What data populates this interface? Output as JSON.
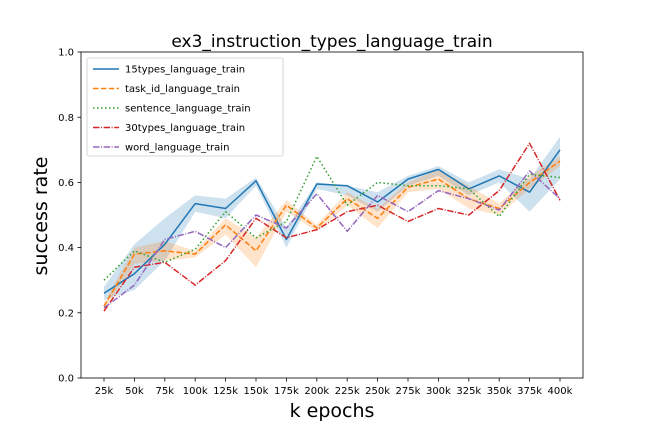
{
  "chart_data": {
    "type": "line",
    "title": "ex3_instruction_types_language_train",
    "xlabel": "k epochs",
    "ylabel": "success rate",
    "categories": [
      "25k",
      "50k",
      "75k",
      "100k",
      "125k",
      "150k",
      "175k",
      "200k",
      "225k",
      "250k",
      "275k",
      "300k",
      "325k",
      "350k",
      "375k",
      "400k"
    ],
    "ylim": [
      0.0,
      1.0
    ],
    "yticks": [
      "0.0",
      "0.2",
      "0.4",
      "0.6",
      "0.8",
      "1.0"
    ],
    "grid": false,
    "legend_position": "top-left",
    "series": [
      {
        "name": "15types_language_train",
        "color": "#1f77b4",
        "dash": "solid",
        "values": [
          0.26,
          0.32,
          0.41,
          0.535,
          0.52,
          0.605,
          0.425,
          0.595,
          0.59,
          0.54,
          0.61,
          0.64,
          0.58,
          0.62,
          0.57,
          0.7
        ],
        "band": [
          [
            0.24,
            0.28
          ],
          [
            0.27,
            0.41
          ],
          [
            0.36,
            0.49
          ],
          [
            0.51,
            0.56
          ],
          [
            0.49,
            0.55
          ],
          [
            0.59,
            0.615
          ],
          [
            0.4,
            0.46
          ],
          [
            0.58,
            0.6
          ],
          [
            0.56,
            0.59
          ],
          [
            0.51,
            0.57
          ],
          [
            0.59,
            0.62
          ],
          [
            0.62,
            0.65
          ],
          [
            0.56,
            0.6
          ],
          [
            0.6,
            0.64
          ],
          [
            0.51,
            0.61
          ],
          [
            0.61,
            0.74
          ]
        ]
      },
      {
        "name": "task_id_language_train",
        "color": "#ff7f0e",
        "dash": "dashed",
        "values": [
          0.22,
          0.38,
          0.39,
          0.38,
          0.47,
          0.39,
          0.53,
          0.46,
          0.55,
          0.49,
          0.585,
          0.61,
          0.55,
          0.52,
          0.6,
          0.665
        ],
        "band": [
          [
            0.21,
            0.23
          ],
          [
            0.35,
            0.4
          ],
          [
            0.36,
            0.42
          ],
          [
            0.37,
            0.39
          ],
          [
            0.44,
            0.49
          ],
          [
            0.34,
            0.43
          ],
          [
            0.51,
            0.545
          ],
          [
            0.45,
            0.47
          ],
          [
            0.53,
            0.57
          ],
          [
            0.46,
            0.52
          ],
          [
            0.57,
            0.6
          ],
          [
            0.58,
            0.64
          ],
          [
            0.52,
            0.59
          ],
          [
            0.5,
            0.535
          ],
          [
            0.58,
            0.62
          ],
          [
            0.65,
            0.68
          ]
        ]
      },
      {
        "name": "sentence_language_train",
        "color": "#2ca02c",
        "dash": "dotted",
        "values": [
          0.3,
          0.39,
          0.355,
          0.395,
          0.51,
          0.43,
          0.48,
          0.68,
          0.53,
          0.6,
          0.59,
          0.59,
          0.58,
          0.495,
          0.625,
          0.615
        ]
      },
      {
        "name": "30types_language_train",
        "color": "#d62728",
        "dash": "dashdot",
        "values": [
          0.205,
          0.34,
          0.355,
          0.285,
          0.36,
          0.49,
          0.43,
          0.455,
          0.51,
          0.53,
          0.48,
          0.52,
          0.5,
          0.575,
          0.72,
          0.545
        ]
      },
      {
        "name": "word_language_train",
        "color": "#9467bd",
        "dash": "dashdot",
        "values": [
          0.215,
          0.285,
          0.425,
          0.45,
          0.4,
          0.5,
          0.46,
          0.565,
          0.45,
          0.56,
          0.51,
          0.575,
          0.55,
          0.515,
          0.635,
          0.55
        ]
      }
    ]
  }
}
